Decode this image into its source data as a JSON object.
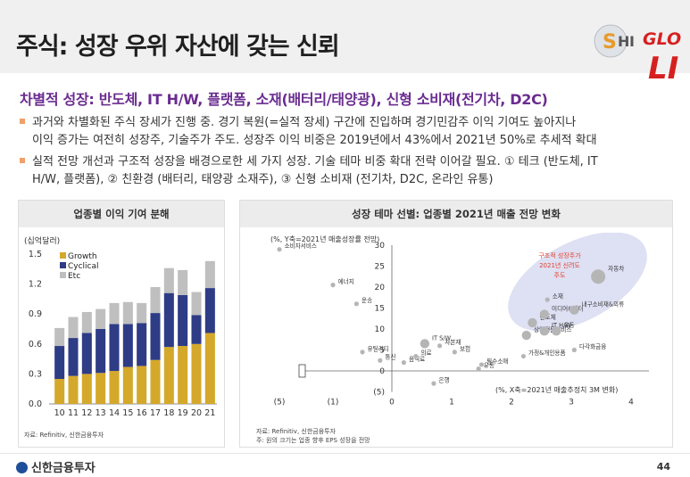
{
  "title": "주식: 성장 우위 자산에 갖는 신뢰",
  "logo": {
    "s": "S",
    "h": "H",
    "i": "I",
    "glo": "GLO",
    "li": "LI"
  },
  "subtitle": "차별적 성장: 반도체, IT H/W, 플랫폼, 소재(배터리/태양광), 신형 소비재(전기차, D2C)",
  "bullets": [
    {
      "line1": "과거와 차별화된 주식 장세가 진행 중. 경기 복원(=실적 장세) 구간에 진입하며 경기민감주 이익 기여도 높아지나",
      "line2": "이익 증가는 여전히 성장주, 기술주가 주도. 성장주 이익 비중은 2019년에서 43%에서 2021년 50%로 추세적 확대"
    },
    {
      "line1": "실적 전망 개선과 구조적 성장을 배경으로한 세 가지 성장. 기술 테마 비중 확대 전략 이어갈 필요. ① 테크 (반도체, IT",
      "line2": "H/W, 플랫폼), ② 친환경 (배터리, 태양광 소재주), ③ 신형 소비재 (전기차, D2C, 온라인 유통)"
    }
  ],
  "colors": {
    "growth": "#d4a82a",
    "cyclical": "#2e3c86",
    "etc": "#bfbfbf",
    "accent_purple": "#6a2c90",
    "bubble_gray": "#b5b5b5",
    "highlight": "#d8dbf2",
    "highlight_text": "#e0402a"
  },
  "left_panel": {
    "title": "업종별 이익 기여 분해",
    "source": "자료: Refinitiv, 신한금융투자",
    "chart_data": {
      "type": "bar",
      "stacked": true,
      "unit_label": "(십억달러)",
      "categories": [
        "10",
        "11",
        "12",
        "13",
        "14",
        "15",
        "16",
        "17",
        "18",
        "19",
        "20",
        "21"
      ],
      "series": [
        {
          "name": "Growth",
          "values": [
            0.25,
            0.28,
            0.3,
            0.31,
            0.33,
            0.37,
            0.38,
            0.44,
            0.57,
            0.58,
            0.6,
            0.71
          ]
        },
        {
          "name": "Cyclical",
          "values": [
            0.33,
            0.38,
            0.41,
            0.44,
            0.47,
            0.43,
            0.43,
            0.47,
            0.54,
            0.51,
            0.29,
            0.45
          ]
        },
        {
          "name": "Etc",
          "values": [
            0.18,
            0.21,
            0.21,
            0.2,
            0.21,
            0.22,
            0.2,
            0.26,
            0.25,
            0.25,
            0.23,
            0.27
          ]
        }
      ],
      "ylim": [
        0,
        1.5
      ],
      "yticks": [
        "0.0",
        "0.3",
        "0.6",
        "0.9",
        "1.2",
        "1.5"
      ],
      "legend_position": "top-left"
    }
  },
  "right_panel": {
    "title": "성장 테마 선별: 업종별 2021년 매출 전망 변화",
    "source_line1": "자료: Refinitiv, 신한금융투자",
    "source_line2": "주: 원의 크기는 업종 향후 EPS 성장을 전망",
    "highlight_label": [
      "구조적 성장주가",
      "2021년 신려도",
      "주도"
    ],
    "chart_data": {
      "type": "scatter",
      "y_label": "(%, Y축=2021년 매출성장률 전망)",
      "x_label": "(%, X축=2021년 매출추정치 3M 변화)",
      "x_ticks": [
        "(5)",
        "(1)",
        "0",
        "1",
        "2",
        "3",
        "4"
      ],
      "y_ticks": [
        "30",
        "25",
        "20",
        "15",
        "10",
        "5",
        "0",
        "(5)"
      ],
      "points": [
        {
          "label": "소비자서비스",
          "x": -5.0,
          "y": 29.0,
          "size": 1
        },
        {
          "label": "에너지",
          "x": -1.0,
          "y": 20.5,
          "size": 1
        },
        {
          "label": "운송",
          "x": -0.6,
          "y": 16.0,
          "size": 1
        },
        {
          "label": "유틸리티",
          "x": -0.5,
          "y": 4.5,
          "size": 1
        },
        {
          "label": "통신",
          "x": -0.2,
          "y": 2.5,
          "size": 1
        },
        {
          "label": "음식료",
          "x": 0.2,
          "y": 2.0,
          "size": 1
        },
        {
          "label": "의료",
          "x": 0.4,
          "y": 3.5,
          "size": 1
        },
        {
          "label": "IT S/W",
          "x": 0.55,
          "y": 6.5,
          "size": 2
        },
        {
          "label": "자본재",
          "x": 0.8,
          "y": 6.0,
          "size": 1
        },
        {
          "label": "보험",
          "x": 1.05,
          "y": 4.5,
          "size": 1
        },
        {
          "label": "은행",
          "x": 0.7,
          "y": -3.0,
          "size": 1
        },
        {
          "label": "필수소매",
          "x": 1.5,
          "y": 1.5,
          "size": 1
        },
        {
          "label": "유통",
          "x": 1.45,
          "y": 0.5,
          "size": 1
        },
        {
          "label": "가정&개인용품",
          "x": 2.2,
          "y": 3.5,
          "size": 1
        },
        {
          "label": "상업전문서비스",
          "x": 2.25,
          "y": 8.5,
          "size": 2
        },
        {
          "label": "반도체",
          "x": 2.35,
          "y": 11.5,
          "size": 2
        },
        {
          "label": "IT H/W",
          "x": 2.55,
          "y": 9.5,
          "size": 2
        },
        {
          "label": "소재",
          "x": 2.6,
          "y": 17.0,
          "size": 1
        },
        {
          "label": "미디어&엔터",
          "x": 2.55,
          "y": 13.5,
          "size": 2
        },
        {
          "label": "내구소비재&의류",
          "x": 3.05,
          "y": 14.5,
          "size": 2
        },
        {
          "label": "자동차",
          "x": 3.45,
          "y": 22.5,
          "size": 3
        },
        {
          "label": "유동",
          "x": 2.75,
          "y": 9.5,
          "size": 2
        },
        {
          "label": "다각화금융",
          "x": 3.05,
          "y": 5.0,
          "size": 1
        }
      ]
    }
  },
  "footer": {
    "company": "신한금융투자",
    "page": "44"
  }
}
